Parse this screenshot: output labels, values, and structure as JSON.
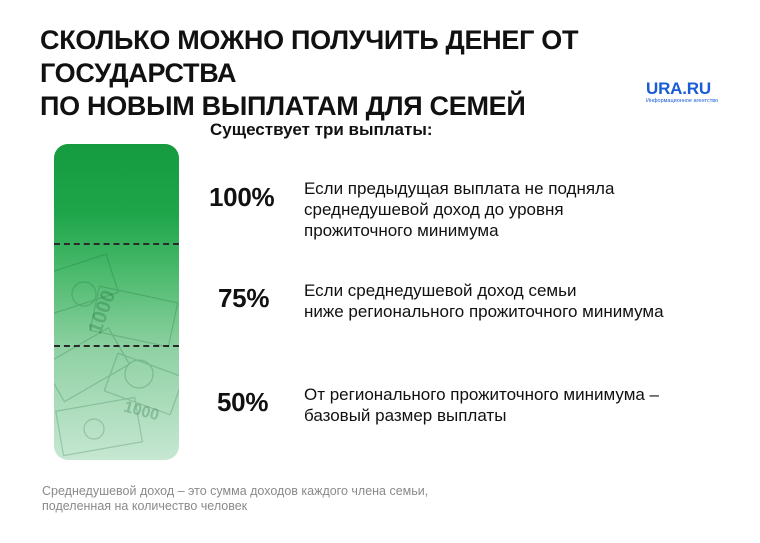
{
  "title": {
    "line1": "СКОЛЬКО МОЖНО ПОЛУЧИТЬ ДЕНЕГ ОТ ГОСУДАРСТВА",
    "line2": "ПО НОВЫМ ВЫПЛАТАМ ДЛЯ СЕМЕЙ"
  },
  "logo": {
    "name": "URA.RU",
    "tagline": "Информационное агентство"
  },
  "subtitle": "Существует три выплаты:",
  "payments": [
    {
      "percent": "100%",
      "lines": [
        "Если предыдущая выплата не подняла",
        "среднедушевой доход до уровня",
        "прожиточного минимума"
      ]
    },
    {
      "percent": "75%",
      "lines": [
        "Если среднедушевой доход семьи",
        "ниже регионального прожиточного минимума"
      ]
    },
    {
      "percent": "50%",
      "lines": [
        "От регионального прожиточного минимума –",
        "базовый размер выплаты"
      ]
    }
  ],
  "footnote": {
    "line1": "Среднедушевой доход – это сумма доходов каждого члена семьи,",
    "line2": "поделенная на количество человек"
  },
  "colors": {
    "bar_top": "#159a3f",
    "bar_bottom": "#c6e7d2",
    "logo": "#1a5bd6"
  }
}
